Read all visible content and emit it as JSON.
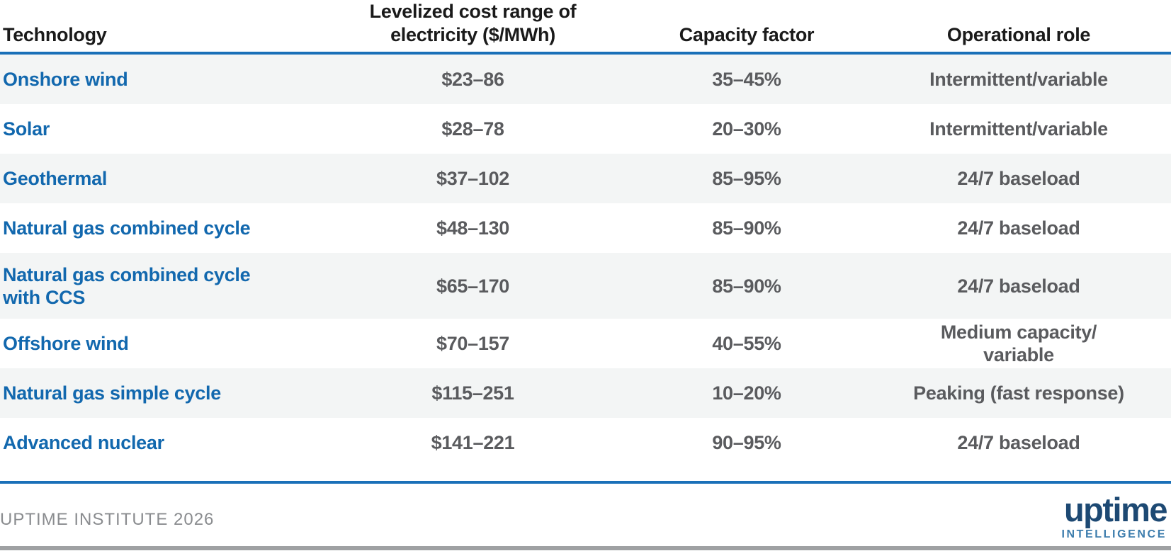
{
  "table": {
    "columns": [
      {
        "label": "Technology"
      },
      {
        "label": "Levelized cost range of\nelectricity ($/MWh)"
      },
      {
        "label": "Capacity factor"
      },
      {
        "label": "Operational role"
      }
    ],
    "rows": [
      {
        "technology": "Onshore wind",
        "cost": "$23–86",
        "capacity_factor": "35–45%",
        "role": "Intermittent/variable"
      },
      {
        "technology": "Solar",
        "cost": "$28–78",
        "capacity_factor": "20–30%",
        "role": "Intermittent/variable"
      },
      {
        "technology": "Geothermal",
        "cost": "$37–102",
        "capacity_factor": "85–95%",
        "role": "24/7 baseload"
      },
      {
        "technology": "Natural gas combined cycle",
        "cost": "$48–130",
        "capacity_factor": "85–90%",
        "role": "24/7 baseload"
      },
      {
        "technology": "Natural gas combined cycle\nwith CCS",
        "cost": "$65–170",
        "capacity_factor": "85–90%",
        "role": "24/7 baseload"
      },
      {
        "technology": "Offshore wind",
        "cost": "$70–157",
        "capacity_factor": "40–55%",
        "role": "Medium capacity/\nvariable"
      },
      {
        "technology": "Natural gas simple cycle",
        "cost": "$115–251",
        "capacity_factor": "10–20%",
        "role": "Peaking (fast response)"
      },
      {
        "technology": "Advanced nuclear",
        "cost": "$141–221",
        "capacity_factor": "90–95%",
        "role": "24/7 baseload"
      }
    ]
  },
  "footer": {
    "attribution": "UPTIME INSTITUTE 2026",
    "logo_wordmark": "uptime",
    "logo_subtext": "INTELLIGENCE"
  },
  "colors": {
    "rule_blue": "#1a70b8",
    "technology_blue": "#1268ae",
    "value_gray": "#5a5b5e",
    "row_stripe": "#f3f5f5",
    "logo_navy": "#1d4973",
    "logo_blue": "#3d7dad",
    "footer_gray": "#8a8c8f",
    "bottom_bar_gray": "#9fa1a3"
  }
}
